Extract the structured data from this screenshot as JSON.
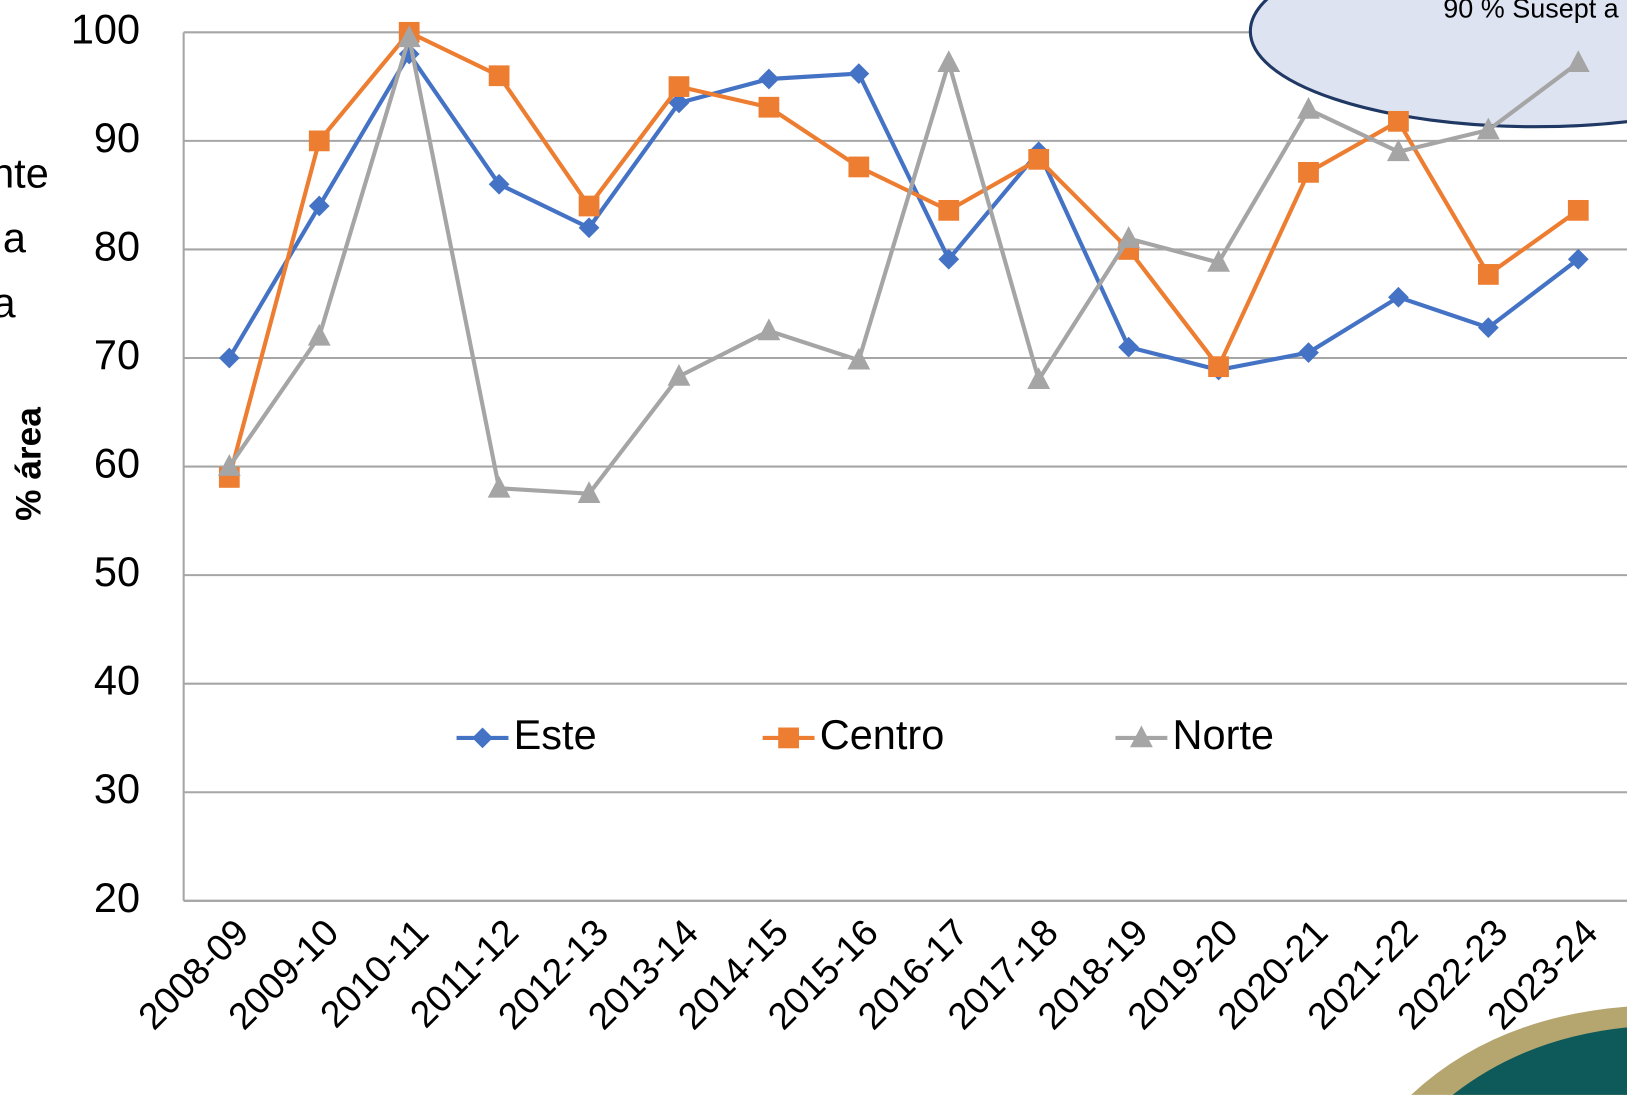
{
  "chart_data": {
    "type": "line",
    "y_axis_label": "% área",
    "annotation": "90 % Susept a",
    "clipped_texts": [
      "nte",
      "a",
      "a"
    ],
    "categories": [
      "2008-09",
      "2009-10",
      "2010-11",
      "2011-12",
      "2012-13",
      "2013-14",
      "2014-15",
      "2015-16",
      "2016-17",
      "2017-18",
      "2018-19",
      "2019-20",
      "2020-21",
      "2021-22",
      "2022-23",
      "2023-24"
    ],
    "series": [
      {
        "name": "Este",
        "color": "#4472c4",
        "marker": "diamond",
        "values": [
          70,
          84,
          98,
          86,
          82,
          93.5,
          95.7,
          96.2,
          79.1,
          89,
          71,
          68.9,
          70.5,
          75.6,
          72.8,
          79.1
        ]
      },
      {
        "name": "Centro",
        "color": "#ed7d31",
        "marker": "square",
        "values": [
          59,
          90,
          100,
          96,
          84,
          95,
          93.1,
          87.6,
          83.6,
          88.3,
          80,
          69.2,
          87.1,
          91.8,
          77.7,
          83.6
        ]
      },
      {
        "name": "Norte",
        "color": "#a5a5a5",
        "marker": "triangle",
        "values": [
          60,
          72,
          99.5,
          58,
          57.5,
          68.3,
          72.5,
          69.8,
          97.2,
          68,
          81,
          78.8,
          92.9,
          89,
          91,
          97.2
        ]
      }
    ],
    "ylim": [
      20,
      100
    ],
    "yticks": [
      20,
      30,
      40,
      50,
      60,
      70,
      80,
      90,
      100
    ],
    "grid": true
  }
}
